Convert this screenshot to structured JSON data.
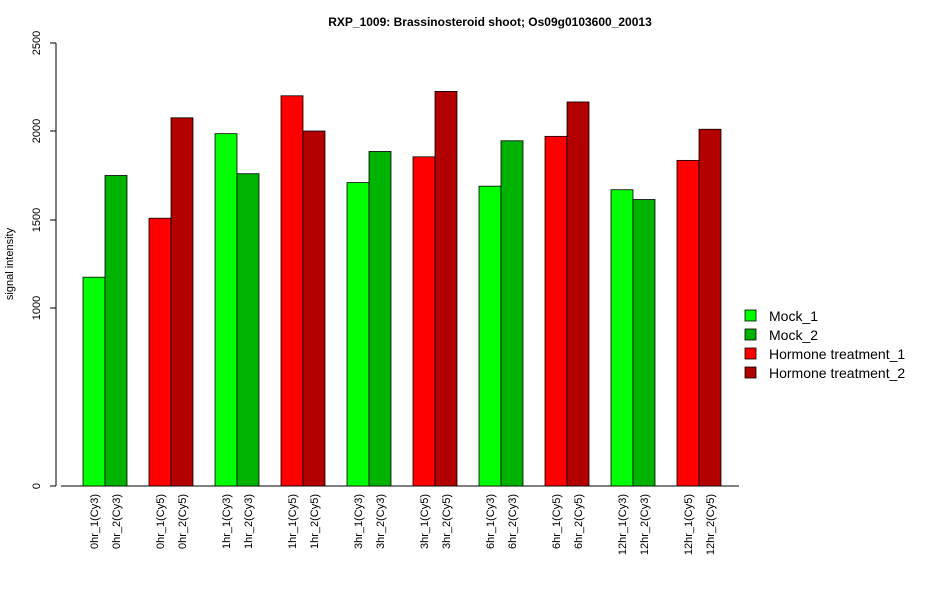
{
  "chart_data": {
    "type": "bar",
    "title": "RXP_1009: Brassinosteroid shoot; Os09g0103600_20013",
    "xlabel": "",
    "ylabel": "signal intensity",
    "y_ticks": [
      0,
      1000,
      1500,
      2000,
      2500
    ],
    "ylim": [
      0,
      2500
    ],
    "grid": false,
    "legend_position": "right",
    "series": [
      {
        "name": "Mock_1",
        "color": "#00ff00"
      },
      {
        "name": "Mock_2",
        "color": "#00b300"
      },
      {
        "name": "Hormone treatment_1",
        "color": "#ff0000"
      },
      {
        "name": "Hormone treatment_2",
        "color": "#b30000"
      }
    ],
    "groups": [
      {
        "bars": [
          {
            "label": "0hr_1(Cy3)",
            "value": 1175,
            "series": 0
          },
          {
            "label": "0hr_2(Cy3)",
            "value": 1750,
            "series": 1
          }
        ]
      },
      {
        "bars": [
          {
            "label": "0hr_1(Cy5)",
            "value": 1510,
            "series": 2
          },
          {
            "label": "0hr_2(Cy5)",
            "value": 2075,
            "series": 3
          }
        ]
      },
      {
        "bars": [
          {
            "label": "1hr_1(Cy3)",
            "value": 1985,
            "series": 0
          },
          {
            "label": "1hr_2(Cy3)",
            "value": 1760,
            "series": 1
          }
        ]
      },
      {
        "bars": [
          {
            "label": "1hr_1(Cy5)",
            "value": 2200,
            "series": 2
          },
          {
            "label": "1hr_2(Cy5)",
            "value": 2000,
            "series": 3
          }
        ]
      },
      {
        "bars": [
          {
            "label": "3hr_1(Cy3)",
            "value": 1710,
            "series": 0
          },
          {
            "label": "3hr_2(Cy3)",
            "value": 1885,
            "series": 1
          }
        ]
      },
      {
        "bars": [
          {
            "label": "3hr_1(Cy5)",
            "value": 1855,
            "series": 2
          },
          {
            "label": "3hr_2(Cy5)",
            "value": 2225,
            "series": 3
          }
        ]
      },
      {
        "bars": [
          {
            "label": "6hr_1(Cy3)",
            "value": 1690,
            "series": 0
          },
          {
            "label": "6hr_2(Cy3)",
            "value": 1945,
            "series": 1
          }
        ]
      },
      {
        "bars": [
          {
            "label": "6hr_1(Cy5)",
            "value": 1970,
            "series": 2
          },
          {
            "label": "6hr_2(Cy5)",
            "value": 2165,
            "series": 3
          }
        ]
      },
      {
        "bars": [
          {
            "label": "12hr_1(Cy3)",
            "value": 1670,
            "series": 0
          },
          {
            "label": "12hr_2(Cy3)",
            "value": 1615,
            "series": 1
          }
        ]
      },
      {
        "bars": [
          {
            "label": "12hr_1(Cy5)",
            "value": 1835,
            "series": 2
          },
          {
            "label": "12hr_2(Cy5)",
            "value": 2010,
            "series": 3
          }
        ]
      }
    ]
  }
}
